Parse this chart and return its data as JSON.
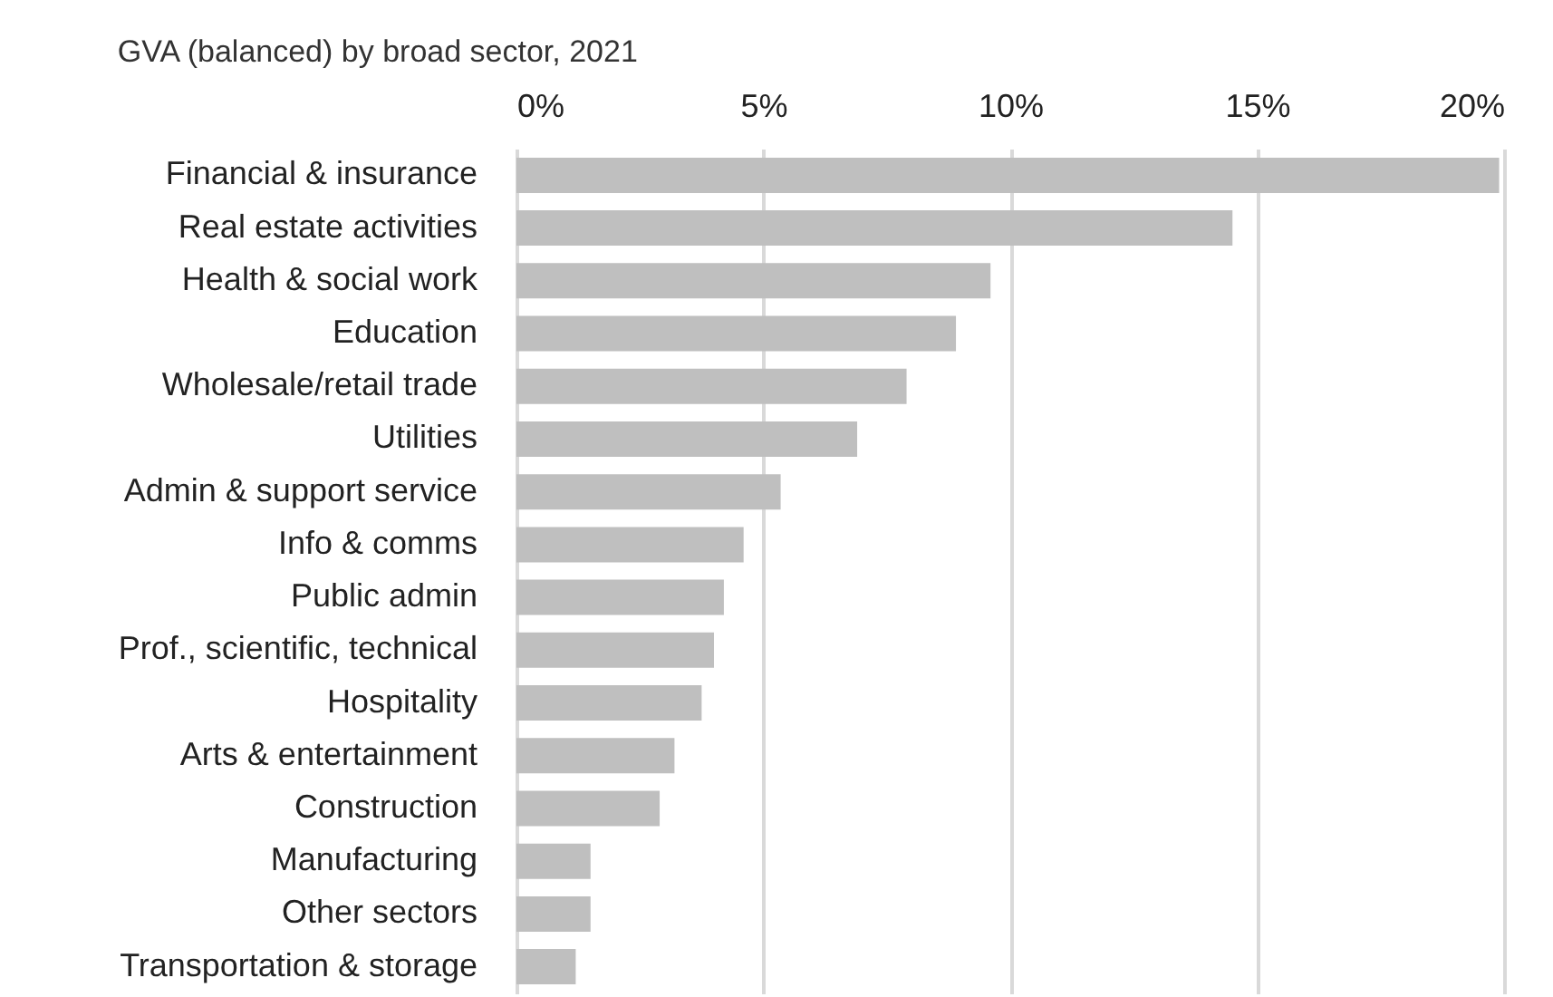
{
  "chart_data": {
    "type": "bar",
    "orientation": "horizontal",
    "title": "GVA (balanced) by broad sector, 2021",
    "categories": [
      "Financial & insurance",
      "Real estate activities",
      "Health & social work",
      "Education",
      "Wholesale/retail trade",
      "Utilities",
      "Admin & support service",
      "Info & comms",
      "Public admin",
      "Prof., scientific, technical",
      "Hospitality",
      "Arts & entertainment",
      "Construction",
      "Manufacturing",
      "Other sectors",
      "Transportation & storage"
    ],
    "values": [
      19.9,
      14.5,
      9.6,
      8.9,
      7.9,
      6.9,
      5.35,
      4.6,
      4.2,
      4.0,
      3.75,
      3.2,
      2.9,
      1.5,
      1.5,
      1.2
    ],
    "color": "#bfbfbf",
    "xlim": [
      0,
      20
    ],
    "xticks": [
      {
        "value": 0,
        "label": "0%"
      },
      {
        "value": 5,
        "label": "5%"
      },
      {
        "value": 10,
        "label": "10%"
      },
      {
        "value": 15,
        "label": "15%"
      },
      {
        "value": 20,
        "label": "20%"
      }
    ],
    "grid": "x"
  }
}
